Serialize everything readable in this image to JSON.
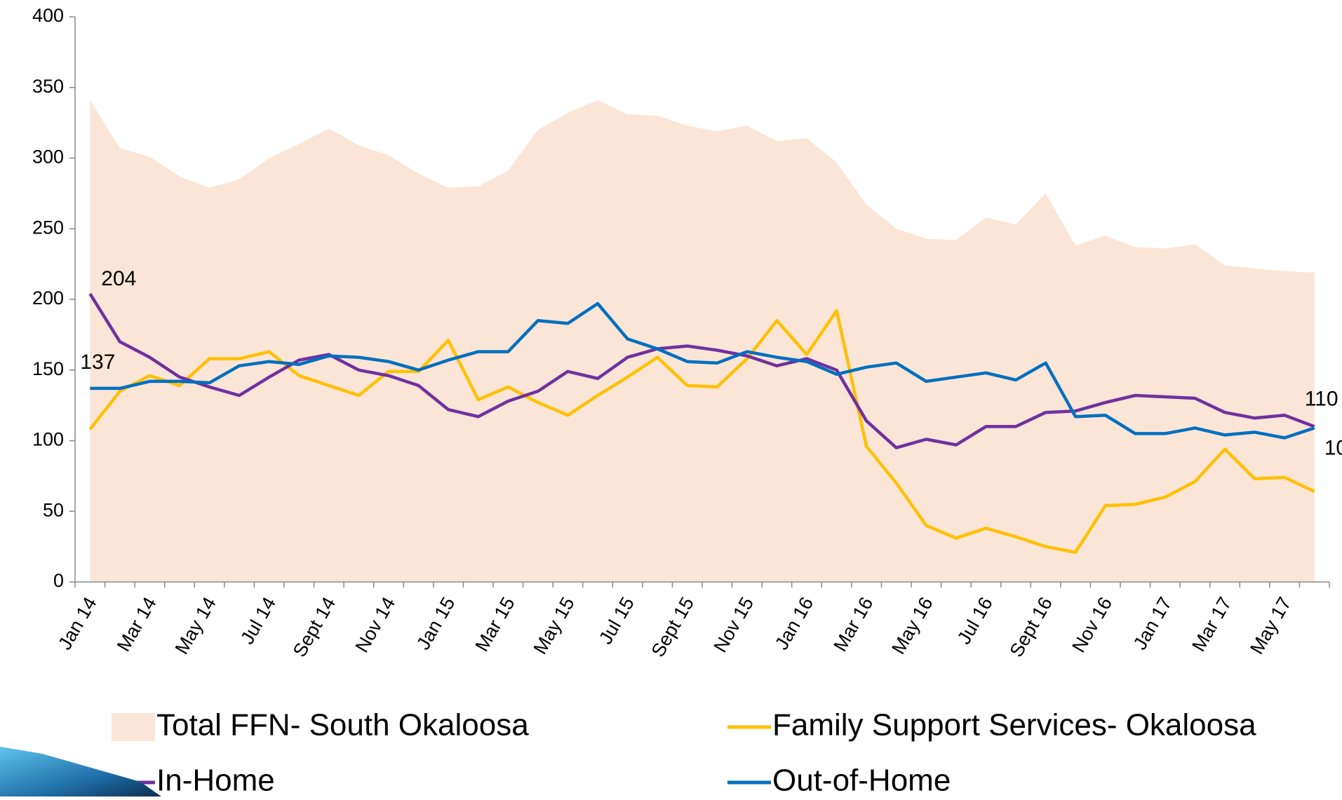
{
  "chart_data": {
    "type": "line",
    "categories": [
      "Jan 14",
      null,
      "Mar 14",
      null,
      "May 14",
      null,
      "Jul 14",
      null,
      "Sept 14",
      null,
      "Nov 14",
      null,
      "Jan 15",
      null,
      "Mar 15",
      null,
      "May 15",
      null,
      "Jul 15",
      null,
      "Sept 15",
      null,
      "Nov 15",
      null,
      "Jan 16",
      null,
      "Mar 16",
      null,
      "May 16",
      null,
      "Jul 16",
      null,
      "Sept 16",
      null,
      "Nov 16",
      null,
      "Jan 17",
      null,
      "Mar 17",
      null,
      "May 17",
      null
    ],
    "series": [
      {
        "name": "Total FFN- South Okaloosa",
        "type": "area",
        "color": "#fbe5d6",
        "values": [
          341,
          307,
          301,
          287,
          279,
          285,
          300,
          310,
          321,
          309,
          302,
          289,
          279,
          280,
          291,
          320,
          332,
          341,
          331,
          330,
          323,
          319,
          323,
          312,
          314,
          297,
          267,
          250,
          243,
          242,
          258,
          253,
          275,
          238,
          245,
          237,
          236,
          239,
          224,
          222,
          220,
          219
        ]
      },
      {
        "name": "Family Support Services- Okaloosa",
        "type": "line",
        "color": "#ffc000",
        "values": [
          108,
          135,
          146,
          139,
          158,
          158,
          163,
          146,
          139,
          132,
          149,
          149,
          171,
          129,
          138,
          127,
          118,
          132,
          145,
          159,
          139,
          138,
          158,
          185,
          161,
          192,
          96,
          70,
          40,
          31,
          38,
          32,
          25,
          21,
          54,
          55,
          60,
          71,
          94,
          73,
          74,
          64
        ]
      },
      {
        "name": "In-Home",
        "type": "line",
        "color": "#7030a0",
        "labeled_points": [
          0,
          41
        ],
        "values": [
          204,
          170,
          159,
          145,
          138,
          132,
          145,
          157,
          161,
          150,
          146,
          139,
          122,
          117,
          128,
          135,
          149,
          144,
          159,
          165,
          167,
          164,
          160,
          153,
          158,
          150,
          114,
          95,
          101,
          97,
          110,
          110,
          120,
          121,
          127,
          132,
          131,
          130,
          120,
          116,
          118,
          110
        ]
      },
      {
        "name": "Out-of-Home",
        "type": "line",
        "color": "#0070c0",
        "labeled_points": [
          0,
          41
        ],
        "values": [
          137,
          137,
          142,
          142,
          141,
          153,
          156,
          154,
          160,
          159,
          156,
          150,
          157,
          163,
          163,
          185,
          183,
          197,
          172,
          165,
          156,
          155,
          163,
          159,
          156,
          147,
          152,
          155,
          142,
          145,
          148,
          143,
          155,
          117,
          118,
          105,
          105,
          109,
          104,
          106,
          102,
          109
        ]
      }
    ],
    "ylim": [
      0,
      400
    ],
    "yticks": [
      0,
      50,
      100,
      150,
      200,
      250,
      300,
      350,
      400
    ],
    "grid": false,
    "legend": "bottom"
  }
}
